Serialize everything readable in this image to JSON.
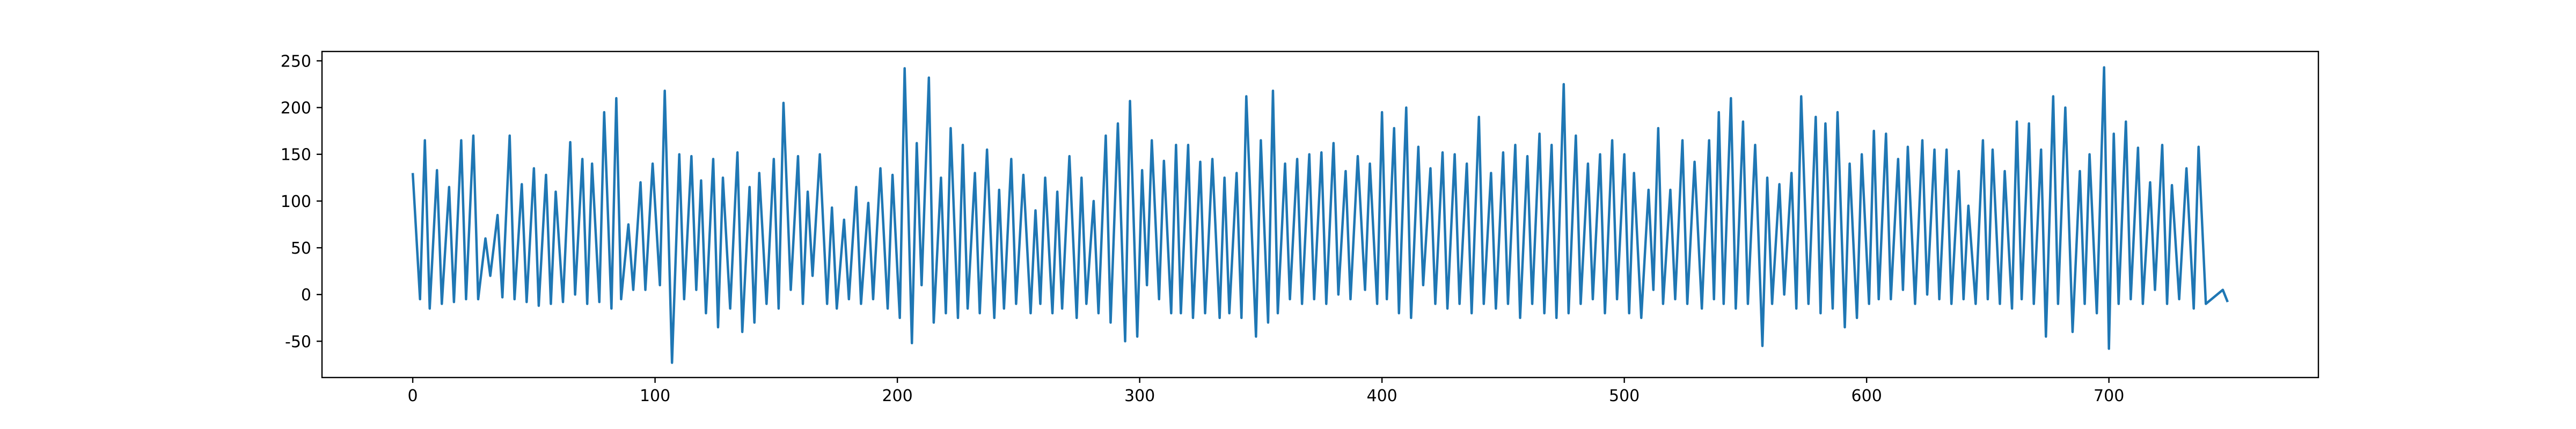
{
  "chart_data": {
    "type": "line",
    "x": [
      0,
      3,
      5,
      7,
      10,
      12,
      15,
      17,
      20,
      22,
      25,
      27,
      30,
      32,
      35,
      37,
      40,
      42,
      45,
      47,
      50,
      52,
      55,
      57,
      59,
      62,
      65,
      67,
      70,
      72,
      74,
      77,
      79,
      82,
      84,
      86,
      89,
      91,
      94,
      96,
      99,
      102,
      104,
      107,
      110,
      112,
      115,
      117,
      119,
      121,
      124,
      126,
      128,
      131,
      134,
      136,
      139,
      141,
      143,
      146,
      149,
      151,
      153,
      156,
      159,
      161,
      163,
      165,
      168,
      171,
      173,
      175,
      178,
      180,
      183,
      185,
      188,
      190,
      193,
      196,
      198,
      201,
      203,
      206,
      208,
      210,
      213,
      215,
      218,
      220,
      222,
      225,
      227,
      229,
      232,
      234,
      237,
      240,
      242,
      244,
      247,
      249,
      252,
      255,
      257,
      259,
      261,
      264,
      266,
      268,
      271,
      274,
      276,
      278,
      281,
      283,
      286,
      288,
      291,
      294,
      296,
      299,
      301,
      303,
      305,
      308,
      310,
      313,
      315,
      317,
      320,
      322,
      325,
      327,
      330,
      333,
      335,
      337,
      340,
      342,
      344,
      348,
      350,
      353,
      355,
      357,
      360,
      362,
      365,
      367,
      370,
      372,
      375,
      377,
      380,
      382,
      385,
      387,
      390,
      393,
      395,
      398,
      400,
      402,
      405,
      407,
      410,
      412,
      415,
      417,
      420,
      422,
      425,
      427,
      430,
      432,
      435,
      437,
      440,
      442,
      445,
      447,
      450,
      452,
      455,
      457,
      460,
      462,
      465,
      467,
      470,
      472,
      475,
      477,
      480,
      482,
      485,
      487,
      490,
      492,
      495,
      497,
      500,
      502,
      504,
      507,
      510,
      512,
      514,
      516,
      519,
      521,
      524,
      526,
      529,
      532,
      535,
      537,
      539,
      541,
      544,
      546,
      549,
      551,
      554,
      557,
      559,
      561,
      564,
      566,
      569,
      571,
      573,
      576,
      579,
      581,
      583,
      586,
      588,
      591,
      593,
      596,
      598,
      601,
      603,
      605,
      608,
      610,
      613,
      615,
      617,
      620,
      623,
      625,
      628,
      630,
      633,
      635,
      638,
      640,
      642,
      645,
      648,
      650,
      652,
      655,
      657,
      660,
      662,
      664,
      667,
      669,
      672,
      674,
      677,
      679,
      682,
      685,
      688,
      690,
      692,
      695,
      698,
      700,
      702,
      704,
      707,
      709,
      712,
      714,
      717,
      719,
      722,
      724,
      726,
      729,
      732,
      735,
      737,
      740,
      747,
      749
    ],
    "values": [
      130,
      -5,
      165,
      -15,
      133,
      -10,
      115,
      -8,
      165,
      -5,
      170,
      -5,
      60,
      20,
      85,
      -3,
      170,
      -5,
      118,
      -8,
      135,
      -12,
      128,
      -10,
      110,
      -8,
      163,
      0,
      145,
      -10,
      140,
      -8,
      195,
      -15,
      210,
      -5,
      75,
      5,
      120,
      5,
      140,
      10,
      218,
      -73,
      150,
      -5,
      148,
      5,
      122,
      -20,
      145,
      -35,
      125,
      -15,
      152,
      -40,
      115,
      -30,
      130,
      -10,
      145,
      -15,
      205,
      5,
      148,
      -10,
      110,
      20,
      150,
      -10,
      93,
      -15,
      80,
      -5,
      115,
      -10,
      98,
      -5,
      135,
      -15,
      128,
      -25,
      242,
      -52,
      162,
      10,
      232,
      -30,
      125,
      -20,
      178,
      -25,
      160,
      -15,
      130,
      -20,
      155,
      -25,
      112,
      -15,
      145,
      -10,
      128,
      -20,
      90,
      -10,
      125,
      -20,
      110,
      -15,
      148,
      -25,
      125,
      -10,
      100,
      -20,
      170,
      -30,
      183,
      -50,
      207,
      -45,
      133,
      10,
      165,
      -5,
      143,
      -20,
      160,
      -20,
      160,
      -25,
      142,
      -20,
      145,
      -25,
      125,
      -20,
      130,
      -25,
      212,
      -45,
      165,
      -30,
      218,
      -20,
      140,
      -5,
      145,
      -10,
      150,
      -5,
      152,
      -10,
      162,
      0,
      132,
      -5,
      148,
      5,
      140,
      -10,
      195,
      -5,
      178,
      -20,
      200,
      -25,
      158,
      10,
      135,
      -10,
      152,
      -15,
      150,
      -10,
      140,
      -20,
      190,
      -10,
      130,
      -15,
      152,
      -10,
      160,
      -25,
      148,
      -10,
      172,
      -20,
      160,
      -25,
      225,
      -20,
      170,
      -10,
      140,
      -5,
      150,
      -20,
      165,
      -5,
      150,
      -20,
      130,
      -25,
      112,
      5,
      178,
      -10,
      112,
      -5,
      165,
      -10,
      142,
      -15,
      165,
      -5,
      195,
      -10,
      210,
      -15,
      185,
      -10,
      160,
      -55,
      125,
      -10,
      118,
      0,
      130,
      -15,
      212,
      -10,
      190,
      -20,
      183,
      -15,
      195,
      -35,
      140,
      -25,
      150,
      -10,
      175,
      -5,
      172,
      -5,
      145,
      5,
      158,
      -10,
      165,
      0,
      155,
      -5,
      155,
      -10,
      132,
      -5,
      95,
      -10,
      165,
      -5,
      155,
      -10,
      132,
      -15,
      185,
      -5,
      183,
      -10,
      155,
      -45,
      212,
      -10,
      200,
      -40,
      132,
      -10,
      150,
      -20,
      243,
      -58,
      172,
      -10,
      185,
      -5,
      157,
      -10,
      120,
      5,
      160,
      -10,
      117,
      -5,
      135,
      -15,
      158,
      -10,
      5,
      -8
    ],
    "color": "#1f77b4",
    "xlim": [
      -37.45,
      786.45
    ],
    "ylim": [
      -88.8,
      260
    ],
    "xticks": [
      0,
      100,
      200,
      300,
      400,
      500,
      600,
      700
    ],
    "yticks": [
      -50,
      0,
      50,
      100,
      150,
      200,
      250
    ]
  }
}
